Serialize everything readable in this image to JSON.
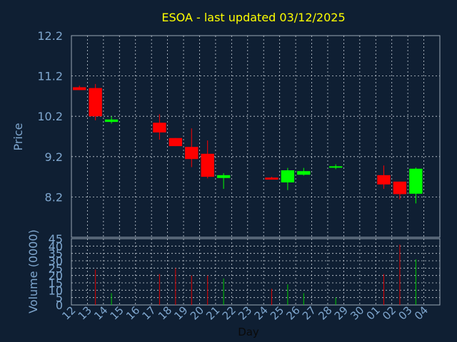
{
  "chart_data": {
    "type": "candlestick",
    "title": "ESOA - last updated 03/12/2025",
    "xlabel": "Day",
    "price_panel": {
      "ylabel": "Price",
      "yticks": [
        "12.2",
        "11.2",
        "10.2",
        "9.2",
        "8.2"
      ],
      "ylim": [
        7.2,
        12.2
      ]
    },
    "volume_panel": {
      "ylabel": "Volume (0000)",
      "yticks": [
        "45",
        "40",
        "35",
        "30",
        "25",
        "20",
        "15",
        "10",
        "5",
        "0"
      ],
      "ylim": [
        0,
        45
      ]
    },
    "x_labels": [
      "12",
      "13",
      "14",
      "15",
      "16",
      "17",
      "18",
      "19",
      "20",
      "21",
      "22",
      "23",
      "24",
      "25",
      "26",
      "27",
      "28",
      "29",
      "30",
      "01",
      "02",
      "03",
      "04"
    ],
    "candles": [
      {
        "day": "12",
        "open": 10.92,
        "high": 10.96,
        "low": 10.85,
        "close": 10.85,
        "volume": 0
      },
      {
        "day": "13",
        "open": 10.9,
        "high": 11.0,
        "low": 10.1,
        "close": 10.2,
        "volume": 24
      },
      {
        "day": "14",
        "open": 10.06,
        "high": 10.2,
        "low": 10.02,
        "close": 10.12,
        "volume": 8
      },
      {
        "day": "17",
        "open": 10.04,
        "high": 10.25,
        "low": 9.62,
        "close": 9.8,
        "volume": 21
      },
      {
        "day": "18",
        "open": 9.66,
        "high": 9.66,
        "low": 9.46,
        "close": 9.46,
        "volume": 25
      },
      {
        "day": "19",
        "open": 9.44,
        "high": 9.9,
        "low": 8.94,
        "close": 9.14,
        "volume": 20
      },
      {
        "day": "20",
        "open": 9.27,
        "high": 9.6,
        "low": 8.66,
        "close": 8.7,
        "volume": 20
      },
      {
        "day": "21",
        "open": 8.67,
        "high": 8.79,
        "low": 8.4,
        "close": 8.74,
        "volume": 18
      },
      {
        "day": "24",
        "open": 8.68,
        "high": 8.7,
        "low": 8.63,
        "close": 8.63,
        "volume": 11
      },
      {
        "day": "25",
        "open": 8.56,
        "high": 8.92,
        "low": 8.37,
        "close": 8.86,
        "volume": 14
      },
      {
        "day": "26",
        "open": 8.75,
        "high": 8.92,
        "low": 8.73,
        "close": 8.84,
        "volume": 8
      },
      {
        "day": "28",
        "open": 8.93,
        "high": 9.01,
        "low": 8.89,
        "close": 8.96,
        "volume": 5
      },
      {
        "day": "01",
        "open": 8.74,
        "high": 8.98,
        "low": 8.4,
        "close": 8.51,
        "volume": 21
      },
      {
        "day": "02",
        "open": 8.58,
        "high": 8.58,
        "low": 8.14,
        "close": 8.27,
        "volume": 41
      },
      {
        "day": "03",
        "open": 8.28,
        "high": 8.93,
        "low": 8.04,
        "close": 8.9,
        "volume": 31
      }
    ],
    "grid": true,
    "colors": {
      "background": "#0f1f33",
      "plot_border": "#9aa7b5",
      "grid": "#c8d0d8",
      "title": "#ffff00",
      "axis_text": "#7fa7cf",
      "up": "#00ff00",
      "down": "#ff0000",
      "volume_up": "#00cc00",
      "volume_down": "#dd0000"
    }
  }
}
